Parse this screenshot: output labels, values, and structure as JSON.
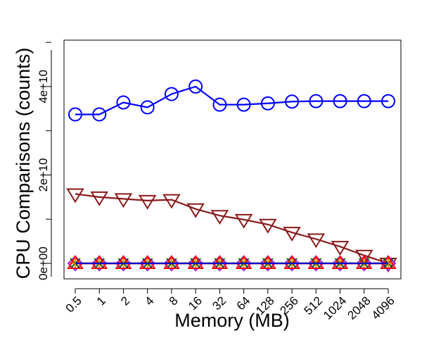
{
  "chart_data": {
    "type": "line",
    "title": "",
    "xlabel": "Memory (MB)",
    "ylabel": "CPU Comparisons (counts)",
    "categories": [
      "0.5",
      "1",
      "2",
      "4",
      "8",
      "16",
      "32",
      "64",
      "128",
      "256",
      "512",
      "1024",
      "2048",
      "4096"
    ],
    "y_ticks": [
      0,
      20000000000,
      40000000000
    ],
    "y_tick_labels": [
      "0e+00",
      "2e+10",
      "4e+10"
    ],
    "y_minor_ticks": [
      10000000000,
      30000000000,
      50000000000
    ],
    "ylim": [
      -3500000000,
      50500000000
    ],
    "grid": false,
    "legend": "none",
    "series": [
      {
        "marker": "circle",
        "color": "#0000ff",
        "values": [
          33700000000,
          33700000000,
          36400000000,
          35300000000,
          38300000000,
          40000000000,
          35900000000,
          35900000000,
          36200000000,
          36600000000,
          36700000000,
          36700000000,
          36700000000,
          36700000000
        ]
      },
      {
        "marker": "triangle-down",
        "color": "#8b1a1a",
        "values": [
          15700000000,
          15000000000,
          14600000000,
          14200000000,
          14400000000,
          12300000000,
          10800000000,
          9900000000,
          8800000000,
          7000000000,
          5500000000,
          3800000000,
          1800000000,
          0
        ]
      },
      {
        "marker": "diamond",
        "color": "#a020f0",
        "values": [
          0,
          0,
          0,
          0,
          0,
          0,
          0,
          0,
          0,
          0,
          0,
          0,
          0,
          0
        ]
      },
      {
        "marker": "x",
        "color": "#006400",
        "values": [
          0,
          0,
          0,
          0,
          0,
          0,
          0,
          0,
          0,
          0,
          0,
          0,
          0,
          0
        ]
      },
      {
        "marker": "plus",
        "color": "#ff8c00",
        "values": [
          0,
          0,
          0,
          0,
          0,
          0,
          0,
          0,
          0,
          0,
          0,
          0,
          0,
          0
        ]
      },
      {
        "marker": "triangle-up",
        "color": "#ff0000",
        "values": [
          0,
          0,
          0,
          0,
          0,
          0,
          0,
          0,
          0,
          0,
          0,
          0,
          0,
          0
        ]
      },
      {
        "marker": "none",
        "color": "#0000cd",
        "values": [
          0,
          0,
          0,
          0,
          0,
          0,
          0,
          0,
          0,
          0,
          0,
          0,
          0,
          0
        ]
      }
    ]
  }
}
